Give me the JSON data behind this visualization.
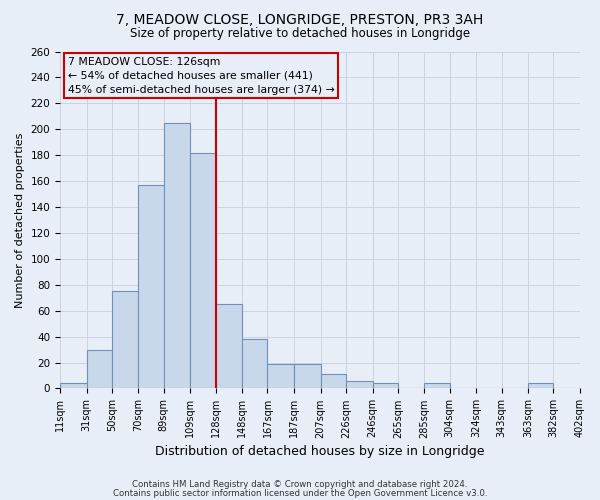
{
  "title": "7, MEADOW CLOSE, LONGRIDGE, PRESTON, PR3 3AH",
  "subtitle": "Size of property relative to detached houses in Longridge",
  "xlabel": "Distribution of detached houses by size in Longridge",
  "ylabel": "Number of detached properties",
  "bin_edges": [
    11,
    31,
    50,
    70,
    89,
    109,
    128,
    148,
    167,
    187,
    207,
    226,
    246,
    265,
    285,
    304,
    324,
    343,
    363,
    382,
    402
  ],
  "bar_heights": [
    4,
    30,
    75,
    157,
    205,
    182,
    65,
    38,
    19,
    19,
    11,
    6,
    4,
    0,
    4,
    0,
    0,
    0,
    4,
    0
  ],
  "bar_color": "#c8d8ea",
  "bar_edge_color": "#7090b8",
  "property_line_x": 128,
  "property_line_color": "#cc0000",
  "ylim": [
    0,
    260
  ],
  "yticks": [
    0,
    20,
    40,
    60,
    80,
    100,
    120,
    140,
    160,
    180,
    200,
    220,
    240,
    260
  ],
  "annotation_box_text": "7 MEADOW CLOSE: 126sqm\n← 54% of detached houses are smaller (441)\n45% of semi-detached houses are larger (374) →",
  "annotation_box_edge_color": "#cc0000",
  "bg_color": "#e8eef8",
  "grid_color": "#c8d0dc",
  "footnote1": "Contains HM Land Registry data © Crown copyright and database right 2024.",
  "footnote2": "Contains public sector information licensed under the Open Government Licence v3.0."
}
